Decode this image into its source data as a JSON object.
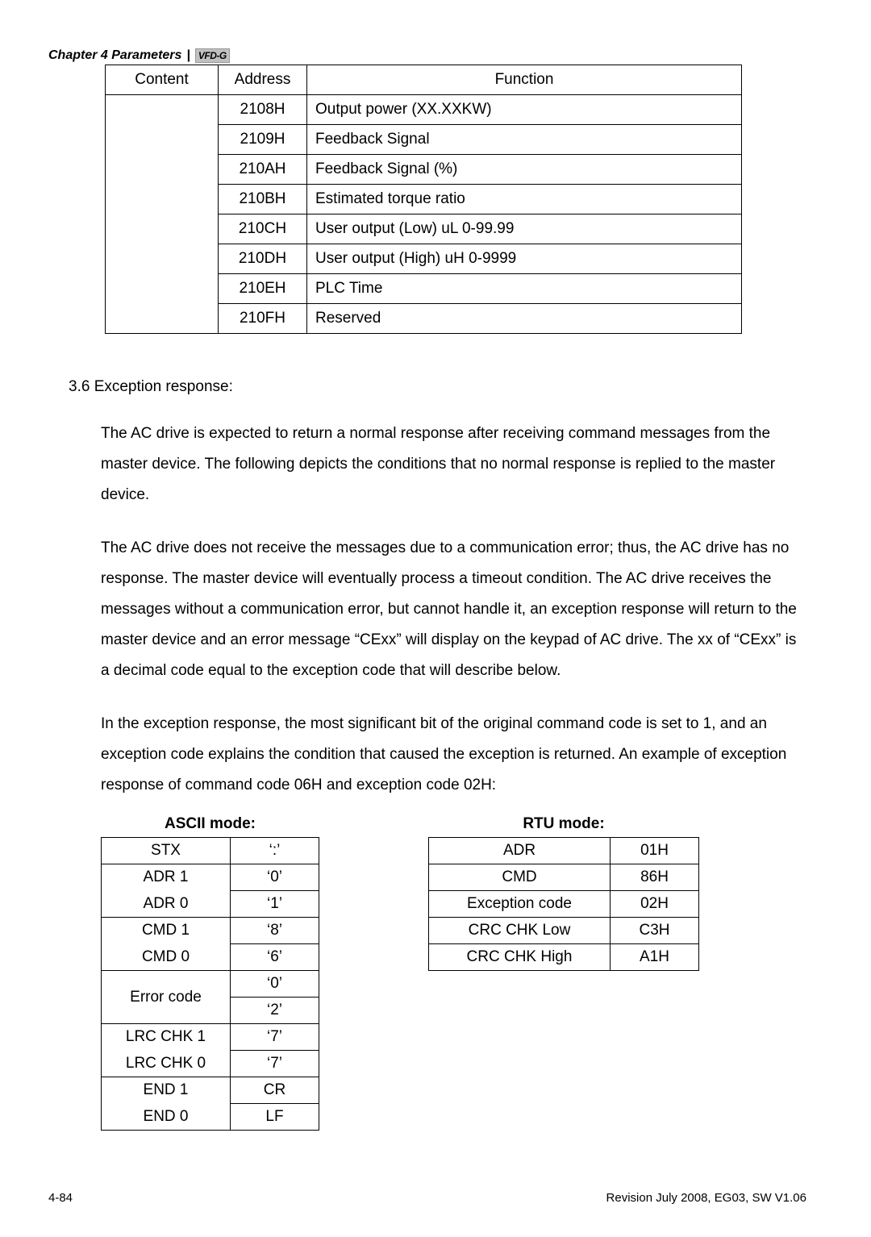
{
  "header": {
    "chapter_label": "Chapter 4 Parameters",
    "separator": "|",
    "logo_text": "VFD-G"
  },
  "main_table": {
    "headers": {
      "content": "Content",
      "address": "Address",
      "function": "Function"
    },
    "rows": [
      {
        "address": "2108H",
        "function": "Output power (XX.XXKW)"
      },
      {
        "address": "2109H",
        "function": "Feedback Signal"
      },
      {
        "address": "210AH",
        "function": "Feedback Signal (%)"
      },
      {
        "address": "210BH",
        "function": "Estimated torque ratio"
      },
      {
        "address": "210CH",
        "function": "User output (Low) uL 0-99.99"
      },
      {
        "address": "210DH",
        "function": "User output (High) uH 0-9999"
      },
      {
        "address": "210EH",
        "function": "PLC Time"
      },
      {
        "address": "210FH",
        "function": "Reserved"
      }
    ]
  },
  "section": {
    "number_title": "3.6 Exception response:",
    "para1": "The AC drive is expected to return a normal response after receiving command messages from the master device. The following depicts the conditions that no normal response is replied to the master device.",
    "para2": "The AC drive does not receive the messages due to a communication error; thus, the AC drive has no response. The master device will eventually process a timeout condition. The AC drive receives the messages without a communication error, but cannot handle it, an exception response will return to the master device and an error message “CExx” will display on the keypad of AC drive. The xx of “CExx” is a decimal code equal to the exception code that will describe below.",
    "para3": "In the exception response, the most significant bit of the original command code is set to 1, and an exception code explains the condition that caused the exception is returned. An example of exception response of command code 06H and exception code 02H:"
  },
  "ascii_mode": {
    "title": "ASCII mode:",
    "rows": [
      {
        "label": "STX",
        "value": "‘:’"
      },
      {
        "label": "ADR 1",
        "value": "‘0’"
      },
      {
        "label": "ADR 0",
        "value": "‘1’"
      },
      {
        "label": "CMD 1",
        "value": "‘8’"
      },
      {
        "label": "CMD 0",
        "value": "‘6’"
      },
      {
        "label": "Error code",
        "value": "‘0’"
      },
      {
        "label": "",
        "value": "‘2’"
      },
      {
        "label": "LRC CHK 1",
        "value": "‘7’"
      },
      {
        "label": "LRC CHK 0",
        "value": "‘7’"
      },
      {
        "label": "END 1",
        "value": "CR"
      },
      {
        "label": "END 0",
        "value": "LF"
      }
    ]
  },
  "rtu_mode": {
    "title": "RTU mode:",
    "rows": [
      {
        "label": "ADR",
        "value": "01H"
      },
      {
        "label": "CMD",
        "value": "86H"
      },
      {
        "label": "Exception code",
        "value": "02H"
      },
      {
        "label": "CRC CHK Low",
        "value": "C3H"
      },
      {
        "label": "CRC CHK High",
        "value": "A1H"
      }
    ]
  },
  "footer": {
    "page": "4-84",
    "revision": "Revision July 2008, EG03, SW V1.06"
  }
}
